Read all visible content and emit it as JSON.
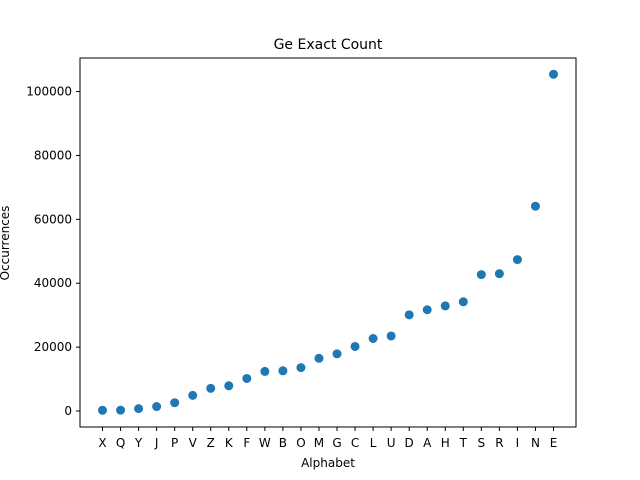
{
  "chart_data": {
    "type": "scatter",
    "title": "Ge Exact Count",
    "xlabel": "Alphabet",
    "ylabel": "Occurrences",
    "categories": [
      "X",
      "Q",
      "Y",
      "J",
      "P",
      "V",
      "Z",
      "K",
      "F",
      "W",
      "B",
      "O",
      "M",
      "G",
      "C",
      "L",
      "U",
      "D",
      "A",
      "H",
      "T",
      "S",
      "R",
      "I",
      "N",
      "E"
    ],
    "values": [
      230,
      280,
      750,
      1400,
      2600,
      4900,
      7100,
      7900,
      10200,
      12400,
      12600,
      13600,
      16500,
      17900,
      20200,
      22700,
      23500,
      30100,
      31700,
      32900,
      34200,
      42700,
      43000,
      47400,
      64100,
      105400
    ],
    "ylim": [
      -5000,
      110500
    ],
    "yticks": [
      0,
      20000,
      40000,
      60000,
      80000,
      100000
    ],
    "grid": false,
    "marker_color": "#1f77b4"
  }
}
